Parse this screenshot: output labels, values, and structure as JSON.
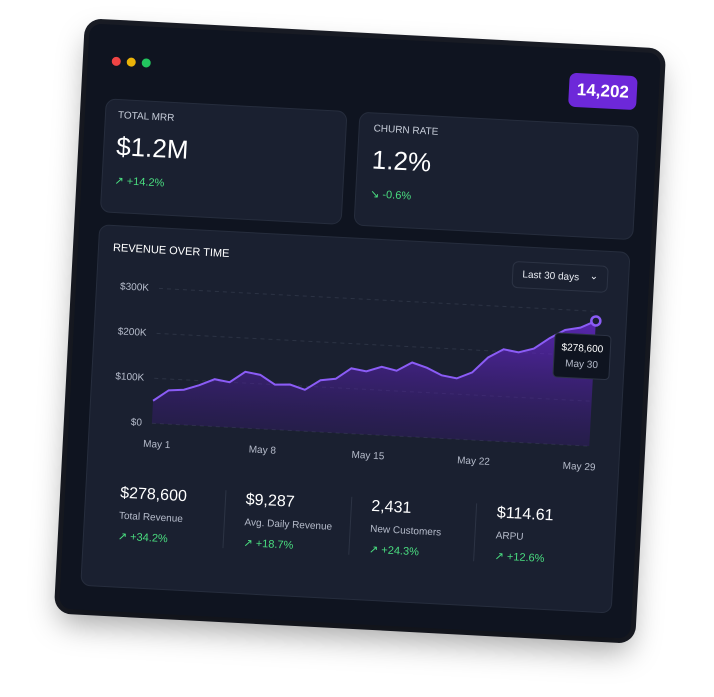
{
  "header": {
    "badge": "14,202"
  },
  "cards": [
    {
      "label": "TOTAL MRR",
      "value": "$1.2M",
      "change": "+14.2%"
    },
    {
      "label": "CHURN RATE",
      "value": "1.2%",
      "change": "-0.6%"
    }
  ],
  "revenue": {
    "title": "REVENUE OVER TIME",
    "range_select": "Last 30 days",
    "chart": {
      "type": "line",
      "categories": [
        "May 1",
        null,
        null,
        null,
        null,
        null,
        null,
        "May 8",
        null,
        null,
        null,
        null,
        null,
        null,
        "May 15",
        null,
        null,
        null,
        null,
        null,
        null,
        "May 22",
        null,
        null,
        null,
        null,
        null,
        null,
        "May 29",
        null
      ],
      "series": [
        {
          "color": "#8b5cf6",
          "values": [
            50000,
            75000,
            78000,
            90000,
            105000,
            100000,
            125000,
            120000,
            100000,
            102000,
            92000,
            115000,
            120000,
            145000,
            140000,
            152000,
            145000,
            165000,
            155000,
            140000,
            135000,
            150000,
            185000,
            205000,
            200000,
            210000,
            235000,
            255000,
            262000,
            278600
          ],
          "value_labels": [
            null,
            null,
            null,
            null,
            null,
            null,
            null,
            null,
            null,
            null,
            null,
            null,
            null,
            null,
            null,
            null,
            null,
            null,
            null,
            null,
            null,
            null,
            null,
            null,
            null,
            null,
            null,
            null,
            null,
            "$278,600"
          ]
        }
      ],
      "tooltip_date": "May 30",
      "ylim": [
        0,
        300000
      ],
      "yticks": [
        {
          "value": 0,
          "label": "$0"
        },
        {
          "value": 100000,
          "label": "$100K"
        },
        {
          "value": 200000,
          "label": "$200K"
        },
        {
          "value": 300000,
          "label": "$300K"
        }
      ],
      "grid": true
    },
    "kpis": [
      {
        "value": "$278,600",
        "label": "Total Revenue",
        "change": "+34.2%"
      },
      {
        "value": "$9,287",
        "label": "Avg. Daily Revenue",
        "change": "+18.7%"
      },
      {
        "value": "2,431",
        "label": "New Customers",
        "change": "+24.3%"
      },
      {
        "value": "$114.61",
        "label": "ARPU",
        "change": "+12.6%"
      }
    ]
  }
}
